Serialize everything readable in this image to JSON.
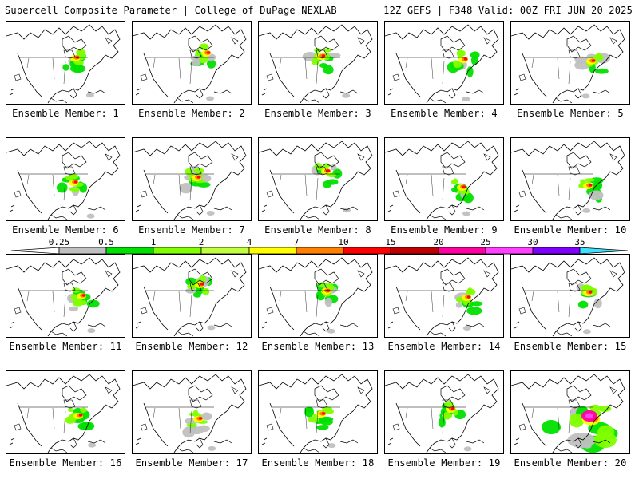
{
  "header": {
    "title": "Supercell Composite Parameter | College of DuPage NEXLAB",
    "run_info": "12Z GEFS | F348 Valid: 00Z FRI JUN 20 2025"
  },
  "panels": [
    {
      "label": "Ensemble Member: 1"
    },
    {
      "label": "Ensemble Member: 2"
    },
    {
      "label": "Ensemble Member: 3"
    },
    {
      "label": "Ensemble Member: 4"
    },
    {
      "label": "Ensemble Member: 5"
    },
    {
      "label": "Ensemble Member: 6"
    },
    {
      "label": "Ensemble Member: 7"
    },
    {
      "label": "Ensemble Member: 8"
    },
    {
      "label": "Ensemble Member: 9"
    },
    {
      "label": "Ensemble Member: 10"
    },
    {
      "label": "Ensemble Member: 11"
    },
    {
      "label": "Ensemble Member: 12"
    },
    {
      "label": "Ensemble Member: 13"
    },
    {
      "label": "Ensemble Member: 14"
    },
    {
      "label": "Ensemble Member: 15"
    },
    {
      "label": "Ensemble Member: 16"
    },
    {
      "label": "Ensemble Member: 17"
    },
    {
      "label": "Ensemble Member: 18"
    },
    {
      "label": "Ensemble Member: 19"
    },
    {
      "label": "Ensemble Member: 20"
    }
  ],
  "legend": {
    "ticks": [
      "0.25",
      "0.5",
      "1",
      "2",
      "4",
      "7",
      "10",
      "15",
      "20",
      "25",
      "30",
      "35"
    ],
    "colors": [
      "#c0c0c0",
      "#00e000",
      "#80ff00",
      "#c0ff40",
      "#ffff00",
      "#ff8000",
      "#ff0000",
      "#c00000",
      "#ff00a0",
      "#ff40ff",
      "#8000ff",
      "#c080ff",
      "#40e0ff"
    ]
  }
}
